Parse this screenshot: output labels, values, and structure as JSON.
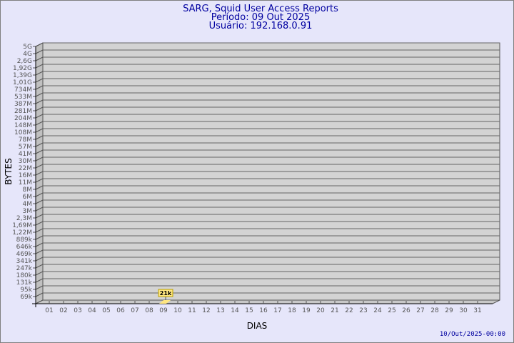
{
  "header": {
    "title": "SARG, Squid User Access Reports",
    "period": "Período: 09 Out 2025",
    "user": "Usuário: 192.168.0.91"
  },
  "footer": {
    "timestamp": "10/Out/2025-00:00"
  },
  "colors": {
    "background": "#e6e6fa",
    "plot": "#d3d3d3",
    "bar": "#ffe680",
    "title": "#0000a0"
  },
  "chart_data": {
    "type": "bar",
    "xlabel": "DIAS",
    "ylabel": "BYTES",
    "yscale": "log",
    "y_ticks": [
      "5G",
      "4G",
      "2,6G",
      "1,92G",
      "1,39G",
      "1,01G",
      "734M",
      "533M",
      "387M",
      "281M",
      "204M",
      "148M",
      "108M",
      "78M",
      "57M",
      "41M",
      "30M",
      "22M",
      "16M",
      "11M",
      "8M",
      "6M",
      "4M",
      "3M",
      "2,3M",
      "1,69M",
      "1,22M",
      "889k",
      "646k",
      "469k",
      "341k",
      "247k",
      "180k",
      "131k",
      "95k",
      "69k"
    ],
    "categories": [
      "01",
      "02",
      "03",
      "04",
      "05",
      "06",
      "07",
      "08",
      "09",
      "10",
      "11",
      "12",
      "13",
      "14",
      "15",
      "16",
      "17",
      "18",
      "19",
      "20",
      "21",
      "22",
      "23",
      "24",
      "25",
      "26",
      "27",
      "28",
      "29",
      "30",
      "31"
    ],
    "values": [
      0,
      0,
      0,
      0,
      0,
      0,
      0,
      0,
      21000,
      0,
      0,
      0,
      0,
      0,
      0,
      0,
      0,
      0,
      0,
      0,
      0,
      0,
      0,
      0,
      0,
      0,
      0,
      0,
      0,
      0,
      0
    ],
    "data_labels": [
      {
        "category": "09",
        "label": "21k"
      }
    ],
    "grid": true
  }
}
